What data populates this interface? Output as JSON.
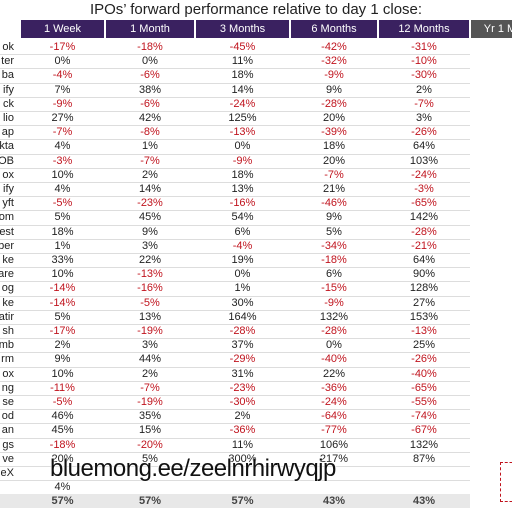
{
  "title": "IPOs’ forward performance relative to day 1 close:",
  "table": {
    "headers": [
      "1 Week",
      "1 Month",
      "3 Months",
      "6 Months",
      "12 Months",
      "Yr 1 M"
    ],
    "rows": [
      {
        "label": "ok",
        "cells": [
          "-17%",
          "-18%",
          "-45%",
          "-42%",
          "-31%"
        ]
      },
      {
        "label": "ter",
        "cells": [
          "0%",
          "0%",
          "11%",
          "-32%",
          "-10%"
        ]
      },
      {
        "label": "ba",
        "cells": [
          "-4%",
          "-6%",
          "18%",
          "-9%",
          "-30%"
        ]
      },
      {
        "label": "ify",
        "cells": [
          "7%",
          "38%",
          "14%",
          "9%",
          "2%"
        ]
      },
      {
        "label": "ck",
        "cells": [
          "-9%",
          "-6%",
          "-24%",
          "-28%",
          "-7%"
        ]
      },
      {
        "label": "lio",
        "cells": [
          "27%",
          "42%",
          "125%",
          "20%",
          "3%"
        ]
      },
      {
        "label": "ap",
        "cells": [
          "-7%",
          "-8%",
          "-13%",
          "-39%",
          "-26%"
        ]
      },
      {
        "label": "kta",
        "cells": [
          "4%",
          "1%",
          "0%",
          "18%",
          "64%"
        ]
      },
      {
        "label": "OB",
        "cells": [
          "-3%",
          "-7%",
          "-9%",
          "20%",
          "103%"
        ]
      },
      {
        "label": "ox",
        "cells": [
          "10%",
          "2%",
          "18%",
          "-7%",
          "-24%"
        ]
      },
      {
        "label": "ify",
        "cells": [
          "4%",
          "14%",
          "13%",
          "21%",
          "-3%"
        ]
      },
      {
        "label": "yft",
        "cells": [
          "-5%",
          "-23%",
          "-16%",
          "-46%",
          "-65%"
        ]
      },
      {
        "label": "om",
        "cells": [
          "5%",
          "45%",
          "54%",
          "9%",
          "142%"
        ]
      },
      {
        "label": "est",
        "cells": [
          "18%",
          "9%",
          "6%",
          "5%",
          "-28%"
        ]
      },
      {
        "label": "ber",
        "cells": [
          "1%",
          "3%",
          "-4%",
          "-34%",
          "-21%"
        ]
      },
      {
        "label": "ke",
        "cells": [
          "33%",
          "22%",
          "19%",
          "-18%",
          "64%"
        ]
      },
      {
        "label": "are",
        "cells": [
          "10%",
          "-13%",
          "0%",
          "6%",
          "90%"
        ]
      },
      {
        "label": "og",
        "cells": [
          "-14%",
          "-16%",
          "1%",
          "-15%",
          "128%"
        ]
      },
      {
        "label": "ke",
        "cells": [
          "-14%",
          "-5%",
          "30%",
          "-9%",
          "27%"
        ]
      },
      {
        "label": "atir",
        "cells": [
          "5%",
          "13%",
          "164%",
          "132%",
          "153%"
        ]
      },
      {
        "label": "sh",
        "cells": [
          "-17%",
          "-19%",
          "-28%",
          "-28%",
          "-13%"
        ]
      },
      {
        "label": "mb",
        "cells": [
          "2%",
          "3%",
          "37%",
          "0%",
          "25%"
        ]
      },
      {
        "label": "rm",
        "cells": [
          "9%",
          "44%",
          "-29%",
          "-40%",
          "-26%"
        ]
      },
      {
        "label": "ox",
        "cells": [
          "10%",
          "2%",
          "31%",
          "22%",
          "-40%"
        ]
      },
      {
        "label": "ng",
        "cells": [
          "-11%",
          "-7%",
          "-23%",
          "-36%",
          "-65%"
        ]
      },
      {
        "label": "se",
        "cells": [
          "-5%",
          "-19%",
          "-30%",
          "-24%",
          "-55%"
        ]
      },
      {
        "label": "od",
        "cells": [
          "46%",
          "35%",
          "2%",
          "-64%",
          "-74%"
        ]
      },
      {
        "label": "an",
        "cells": [
          "45%",
          "15%",
          "-36%",
          "-77%",
          "-67%"
        ]
      },
      {
        "label": "gs",
        "cells": [
          "-18%",
          "-20%",
          "11%",
          "106%",
          "132%"
        ]
      },
      {
        "label": "ve",
        "cells": [
          "20%",
          "5%",
          "300%",
          "217%",
          "87%"
        ]
      },
      {
        "label": "eX",
        "cells": []
      },
      {
        "cells": [
          "4%"
        ]
      }
    ],
    "summary": [
      "57%",
      "57%",
      "57%",
      "43%",
      "43%"
    ]
  },
  "watermark": "bluemong.ee/zeelnrhirwyqjp"
}
